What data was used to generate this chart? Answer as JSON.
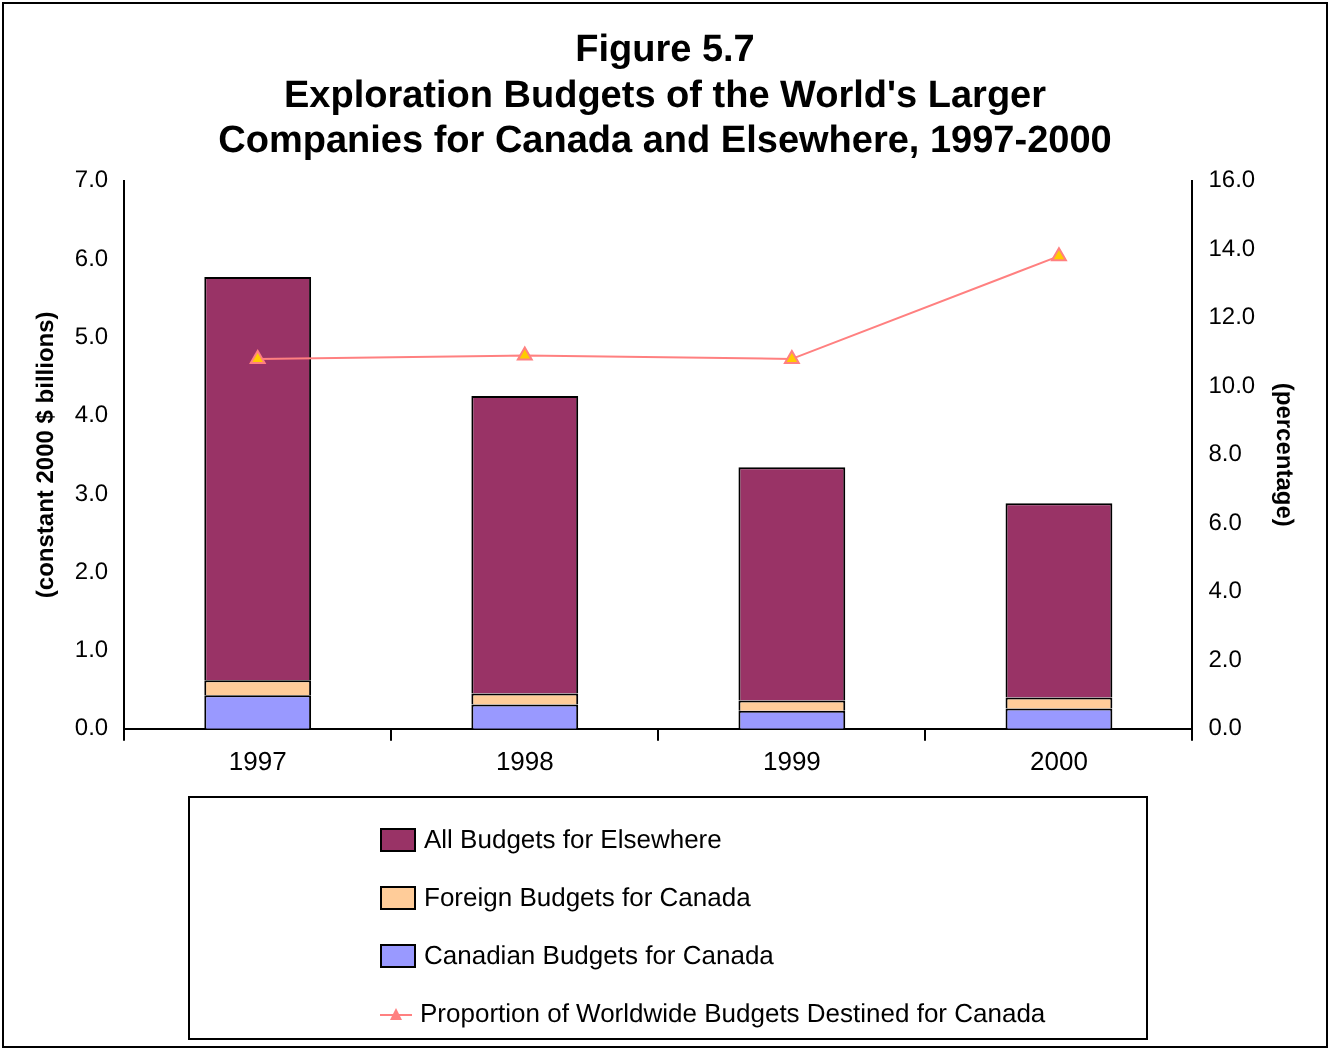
{
  "chart_data": {
    "type": "bar",
    "title": "Figure 5.7\nExploration Budgets of the World's Larger\nCompanies for Canada and Elsewhere, 1997-2000",
    "ylabel": "(constant 2000 $ billions)",
    "y2label": "(percentage)",
    "categories": [
      "1997",
      "1998",
      "1999",
      "2000"
    ],
    "stacked": true,
    "legend": "bottom",
    "grid": false,
    "marker": "triangle",
    "series": [
      {
        "name": "Canadian Budgets for Canada",
        "color": "#9999ff",
        "values": [
          0.43,
          0.31,
          0.23,
          0.26
        ]
      },
      {
        "name": "Foreign Budgets for Canada",
        "color": "#ffcc99",
        "values": [
          0.19,
          0.14,
          0.13,
          0.14
        ]
      },
      {
        "name": "All Budgets for Elsewhere",
        "color": "#993366",
        "values": [
          5.15,
          3.8,
          2.98,
          2.48
        ]
      },
      {
        "name": "Proportion of Worldwide Budgets Destined for Canada",
        "type": "line",
        "axis": "y2",
        "color": "#ff8080",
        "values": [
          10.8,
          10.9,
          10.8,
          13.8
        ]
      }
    ],
    "ylim": [
      0,
      7
    ],
    "yticks": [
      {
        "value": 0,
        "label": "0.0"
      },
      {
        "value": 1,
        "label": "1.0"
      },
      {
        "value": 2,
        "label": "2.0"
      },
      {
        "value": 3,
        "label": "3.0"
      },
      {
        "value": 4,
        "label": "4.0"
      },
      {
        "value": 5,
        "label": "5.0"
      },
      {
        "value": 6,
        "label": "6.0"
      },
      {
        "value": 7,
        "label": "7.0"
      }
    ],
    "y2lim": [
      0,
      16
    ],
    "y2ticks": [
      {
        "value": 0,
        "label": "0.0"
      },
      {
        "value": 2,
        "label": "2.0"
      },
      {
        "value": 4,
        "label": "4.0"
      },
      {
        "value": 6,
        "label": "6.0"
      },
      {
        "value": 8,
        "label": "8.0"
      },
      {
        "value": 10,
        "label": "10.0"
      },
      {
        "value": 12,
        "label": "12.0"
      },
      {
        "value": 14,
        "label": "14.0"
      },
      {
        "value": 16,
        "label": "16.0"
      }
    ]
  }
}
